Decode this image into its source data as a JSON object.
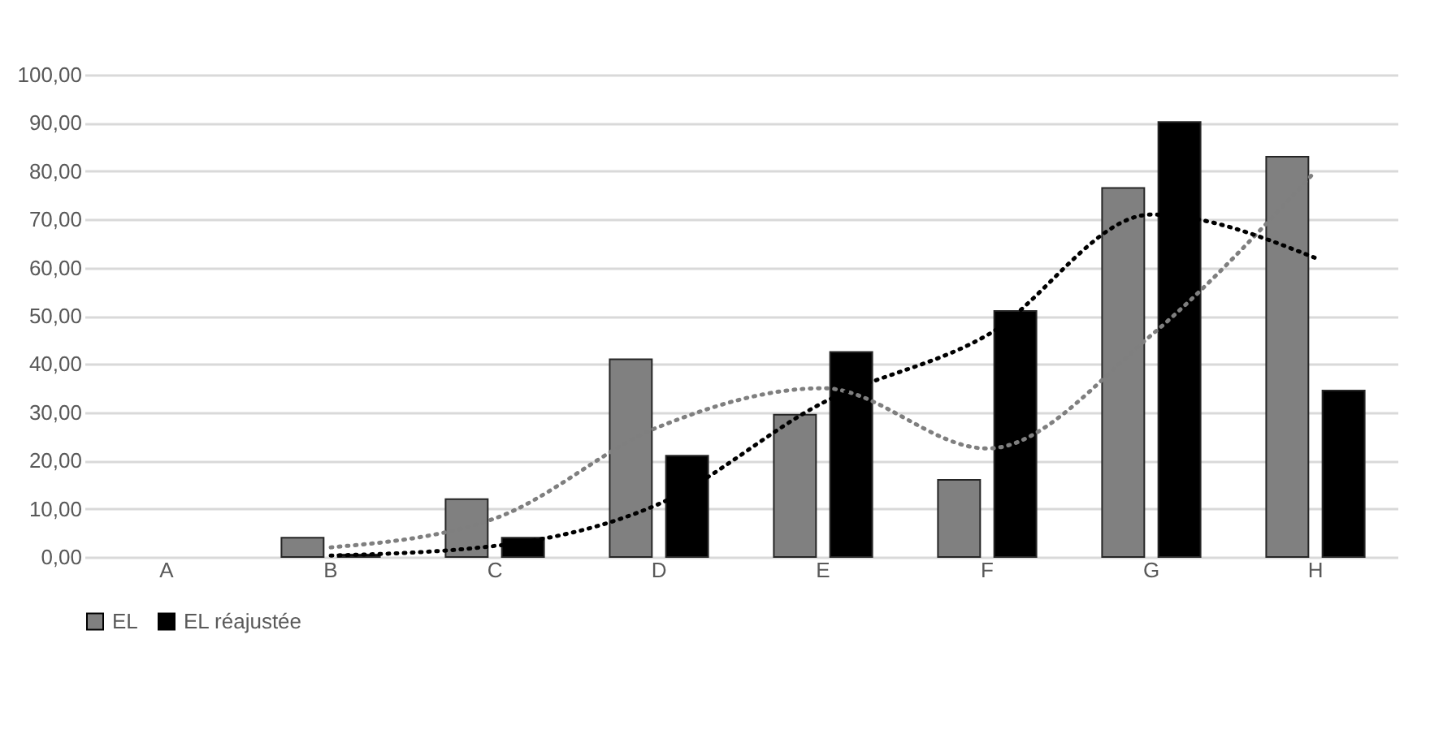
{
  "chart_data": {
    "type": "bar",
    "categories": [
      "A",
      "B",
      "C",
      "D",
      "E",
      "F",
      "G",
      "H"
    ],
    "series": [
      {
        "name": "EL",
        "color": "#808080",
        "values": [
          null,
          4,
          12,
          41,
          29.5,
          16,
          76.5,
          83
        ]
      },
      {
        "name": "EL réajustée",
        "color": "#000000",
        "values": [
          null,
          0.5,
          4,
          21,
          42.5,
          51,
          90.2,
          34.5
        ]
      },
      {
        "type": "line",
        "color": "#7f7f7f",
        "line_style": "dotted",
        "marker": "none",
        "values": [
          null,
          2,
          8,
          27,
          35,
          22.5,
          46,
          80
        ]
      },
      {
        "type": "line",
        "color": "#000000",
        "line_style": "dotted",
        "marker": "none",
        "values": [
          null,
          0.3,
          2.3,
          11,
          32,
          46,
          71,
          62
        ]
      }
    ],
    "ylim": [
      0,
      100
    ],
    "yticks": [
      {
        "value": 0,
        "label": "0,00"
      },
      {
        "value": 10,
        "label": "10,00"
      },
      {
        "value": 20,
        "label": "20,00"
      },
      {
        "value": 30,
        "label": "30,00"
      },
      {
        "value": 40,
        "label": "40,00"
      },
      {
        "value": 50,
        "label": "50,00"
      },
      {
        "value": 60,
        "label": "60,00"
      },
      {
        "value": 70,
        "label": "70,00"
      },
      {
        "value": 80,
        "label": "80,00"
      },
      {
        "value": 90,
        "label": "90,00"
      },
      {
        "value": 100,
        "label": "100,00"
      }
    ],
    "grid": "y",
    "legend": "bottom"
  }
}
